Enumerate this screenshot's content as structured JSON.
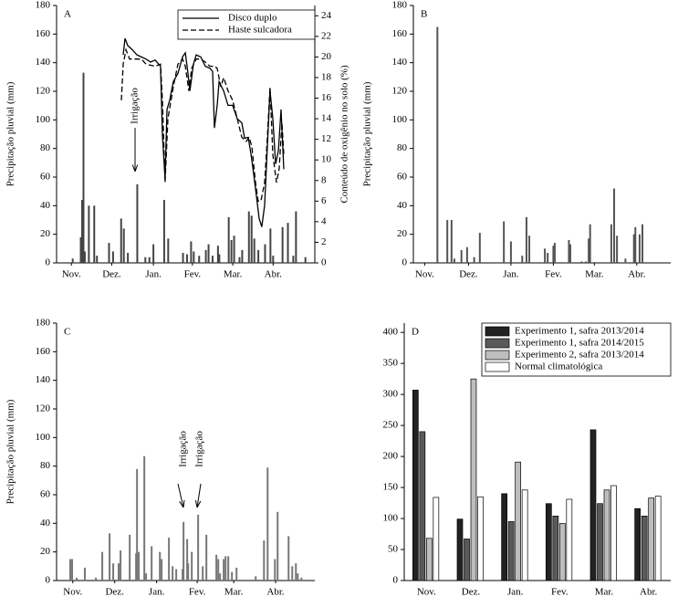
{
  "chart_data": [
    {
      "type": "bar",
      "label": "A",
      "ylabel": "Precipitação pluvial (mm)",
      "y2label": "Conteúdo de oxigênio no solo (%)",
      "xlim": [
        0,
        192
      ],
      "xticks": [
        {
          "value": 11,
          "label": "Nov."
        },
        {
          "value": 41,
          "label": "Dez."
        },
        {
          "value": 72,
          "label": "Jan."
        },
        {
          "value": 101,
          "label": "Fev."
        },
        {
          "value": 131,
          "label": "Mar."
        },
        {
          "value": 161,
          "label": "Abr."
        }
      ],
      "ylim": [
        0,
        180
      ],
      "yticks": [
        0,
        20,
        40,
        60,
        80,
        100,
        120,
        140,
        160,
        180
      ],
      "y2lim": [
        0,
        25
      ],
      "y2ticks": [
        0,
        2,
        4,
        6,
        8,
        10,
        12,
        14,
        16,
        18,
        20,
        22,
        24
      ],
      "legend": "upper right",
      "annotations": [
        "Irrigação"
      ],
      "series": [
        {
          "type": "bar",
          "color": "#444444",
          "x": [
            12,
            18,
            19,
            20,
            21,
            24,
            28,
            30,
            39,
            42,
            48,
            50,
            53,
            60,
            66,
            69,
            72,
            80,
            83,
            94,
            97,
            100,
            102,
            106,
            111,
            113,
            116,
            120,
            121,
            128,
            130,
            132,
            136,
            138,
            143,
            145,
            147,
            150,
            155,
            159,
            161,
            168,
            172,
            176,
            178,
            185
          ],
          "values": [
            3,
            18,
            44,
            133,
            8,
            40,
            40,
            5,
            14,
            8,
            31,
            24,
            7,
            55,
            4,
            4,
            13,
            44,
            17,
            7,
            6,
            15,
            8,
            5,
            9,
            13,
            5,
            12,
            6,
            32,
            16,
            19,
            4,
            9,
            36,
            33,
            17,
            9,
            13,
            24,
            5,
            25,
            28,
            5,
            36,
            4
          ]
        },
        {
          "type": "line",
          "name": "Disco duplo",
          "axis": "y2",
          "color": "#000000",
          "linestyle": "solid",
          "x": [
            49.5,
            50.9,
            52.9,
            56.3,
            59.7,
            63.1,
            66.5,
            69.9,
            73.3,
            77.3,
            78.7,
            80.7,
            82.1,
            84.1,
            86.8,
            90.2,
            93.6,
            95.7,
            97.7,
            99.1,
            101.8,
            103.8,
            107.2,
            110.6,
            114,
            116,
            117.4,
            119.4,
            120.8,
            124.2,
            127.5,
            130.9,
            134.3,
            137.7,
            139.8,
            142.5,
            144.5,
            146.5,
            148.6,
            150.6,
            152.6,
            154.7,
            156.7,
            158.7,
            160.8,
            162.8,
            164.9,
            166.9,
            168.9
          ],
          "values": [
            20.2,
            21.8,
            21.1,
            20.7,
            20.2,
            20.0,
            19.8,
            19.5,
            19.7,
            19.1,
            12.4,
            8.2,
            14.9,
            15.8,
            17.6,
            18.4,
            20.0,
            20.4,
            18.4,
            16.7,
            19.3,
            20.2,
            20.0,
            19.1,
            18.9,
            18.6,
            13.1,
            15.3,
            17.6,
            16.7,
            15.3,
            15.3,
            14.0,
            13.6,
            12.1,
            12.2,
            10.6,
            8.7,
            6.5,
            4.3,
            3.5,
            5.6,
            11.3,
            16.7,
            14.0,
            9.6,
            10.9,
            14.9,
            9.1
          ]
        },
        {
          "type": "line",
          "name": "Haste sulcadora",
          "axis": "y2",
          "color": "#000000",
          "linestyle": "dashed",
          "x": [
            48.2,
            49.5,
            51.6,
            54.3,
            58.3,
            63.1,
            66.5,
            73.3,
            77.3,
            78.7,
            80.7,
            82.8,
            86.8,
            90.2,
            93.6,
            95.7,
            98.4,
            100.4,
            103.8,
            107.2,
            110.6,
            114,
            117.4,
            119.4,
            122.1,
            124.2,
            127.5,
            130.9,
            134.3,
            137.7,
            141.1,
            143.1,
            145.2,
            147.9,
            149.9,
            151.9,
            154.7,
            156.7,
            158.7,
            160.8,
            163.5,
            165.5,
            167.6,
            168.9
          ],
          "values": [
            15.8,
            19.3,
            20.7,
            19.8,
            19.8,
            19.8,
            19.3,
            19.1,
            19.3,
            15.8,
            7.8,
            14.0,
            17.1,
            19.3,
            19.8,
            19.1,
            16.7,
            18.9,
            19.8,
            19.8,
            19.5,
            19.1,
            19.1,
            18.9,
            17.1,
            18.0,
            16.7,
            15.8,
            14.0,
            12.2,
            11.8,
            12.2,
            11.3,
            7.8,
            6.0,
            6.0,
            7.8,
            12.2,
            17.1,
            10.5,
            7.8,
            9.1,
            13.6,
            10.5
          ]
        }
      ]
    },
    {
      "type": "bar",
      "label": "B",
      "ylabel": "Precipitação pluvial (mm)",
      "xlim": [
        0,
        182
      ],
      "xticks": [
        {
          "value": 8,
          "label": "Nov."
        },
        {
          "value": 39,
          "label": "Dez."
        },
        {
          "value": 69,
          "label": "Jan."
        },
        {
          "value": 99,
          "label": "Fev."
        },
        {
          "value": 128,
          "label": "Mar."
        },
        {
          "value": 158,
          "label": "Abr."
        }
      ],
      "ylim": [
        0,
        180
      ],
      "yticks": [
        0,
        20,
        40,
        60,
        80,
        100,
        120,
        140,
        160,
        180
      ],
      "series": [
        {
          "type": "bar",
          "color": "#555555",
          "x": [
            17,
            24,
            27,
            29,
            34,
            38,
            43,
            47,
            64,
            69,
            77,
            80,
            82,
            93,
            95,
            99,
            100,
            110,
            111,
            119,
            122,
            124,
            125,
            140,
            142,
            144,
            150,
            156,
            157,
            160,
            162
          ],
          "values": [
            165,
            30,
            30,
            3,
            9,
            11,
            4,
            21,
            29,
            15,
            5,
            32,
            19,
            10,
            7,
            12,
            14,
            16,
            13,
            1,
            1,
            17,
            27,
            27,
            52,
            19,
            3,
            20,
            25,
            20,
            27
          ]
        }
      ]
    },
    {
      "type": "bar",
      "label": "C",
      "ylabel": "Precipitação pluvial (mm)",
      "xlim": [
        0,
        191
      ],
      "xticks": [
        {
          "value": 12,
          "label": "Nov."
        },
        {
          "value": 43,
          "label": "Dez."
        },
        {
          "value": 74,
          "label": "Jan."
        },
        {
          "value": 104,
          "label": "Fev."
        },
        {
          "value": 131,
          "label": "Mar."
        },
        {
          "value": 162,
          "label": "Abr."
        }
      ],
      "ylim": [
        0,
        180
      ],
      "yticks": [
        0,
        20,
        40,
        60,
        80,
        100,
        120,
        140,
        160,
        180
      ],
      "annotations": [
        "Irrigação",
        "Irrigação"
      ],
      "series": [
        {
          "type": "bar",
          "color": "#777777",
          "x": [
            10.1,
            11.5,
            14.9,
            20.9,
            29.1,
            33.8,
            39.2,
            41.9,
            45.9,
            47.3,
            54.1,
            58.8,
            59.5,
            60.8,
            64.9,
            66.2,
            70.3,
            76.4,
            77.7,
            83.1,
            85.8,
            88.5,
            93.2,
            93.9,
            96.6,
            97.3,
            100,
            104.7,
            108.1,
            110.8,
            118.2,
            119.6,
            120.9,
            123.6,
            125,
            127,
            129.7,
            133.1,
            147.3,
            153.4,
            156.1,
            161.5,
            163.5,
            171.6,
            174.3,
            177,
            178.4,
            181.1
          ],
          "values": [
            15,
            15,
            2,
            9,
            2,
            20,
            33,
            12,
            12,
            21,
            32,
            19,
            78,
            20,
            87,
            5,
            24,
            20,
            15,
            30,
            10,
            8,
            8,
            41,
            29,
            12,
            20,
            46,
            10,
            32,
            18,
            15,
            5,
            15,
            17,
            17,
            6,
            9,
            3,
            28,
            79,
            15,
            48,
            31,
            10,
            12,
            5,
            2
          ]
        }
      ]
    },
    {
      "type": "grouped",
      "label": "D",
      "categories": [
        "Nov.",
        "Dez.",
        "Jan.",
        "Fev.",
        "Mar.",
        "Abr."
      ],
      "ylim": [
        0,
        415
      ],
      "yticks": [
        0,
        50,
        100,
        150,
        200,
        250,
        300,
        350,
        400
      ],
      "legend": "upper right",
      "series": [
        {
          "name": "Experimento 1, safra 2013/2014",
          "color": "#222222",
          "values": [
            307,
            99,
            140,
            124,
            243,
            116
          ]
        },
        {
          "name": "Experimento 1, safra 2014/2015",
          "color": "#5a5a5a",
          "values": [
            240,
            67,
            95,
            104,
            124,
            104
          ]
        },
        {
          "name": "Experimento 2, safra 2013/2014",
          "color": "#bdbdbd",
          "values": [
            68,
            325,
            191,
            92,
            146,
            133
          ]
        },
        {
          "name": "Normal climatológica",
          "color": "#ffffff",
          "values": [
            134,
            135,
            146,
            131,
            153,
            136
          ]
        }
      ]
    }
  ]
}
